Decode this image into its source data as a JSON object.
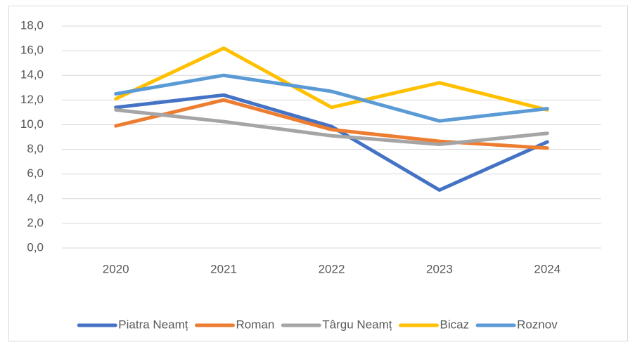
{
  "chart_data": {
    "type": "line",
    "categories": [
      "2020",
      "2021",
      "2022",
      "2023",
      "2024"
    ],
    "series": [
      {
        "name": "Piatra Neamț",
        "color": "#4472c4",
        "values": [
          11.4,
          12.4,
          9.85,
          4.7,
          8.6
        ]
      },
      {
        "name": "Roman",
        "color": "#ed7d31",
        "values": [
          9.9,
          12.0,
          9.6,
          8.65,
          8.1
        ]
      },
      {
        "name": "Târgu Neamț",
        "color": "#a5a5a5",
        "values": [
          11.2,
          10.25,
          9.1,
          8.4,
          9.3
        ]
      },
      {
        "name": "Bicaz",
        "color": "#ffc000",
        "values": [
          12.1,
          16.2,
          11.4,
          13.4,
          11.2
        ]
      },
      {
        "name": "Roznov",
        "color": "#5b9bd5",
        "values": [
          12.5,
          14.0,
          12.7,
          10.3,
          11.3
        ]
      }
    ],
    "ylim": [
      0,
      18
    ],
    "yticks": [
      {
        "value": 0,
        "label": "0,0"
      },
      {
        "value": 2,
        "label": "2,0"
      },
      {
        "value": 4,
        "label": "4,0"
      },
      {
        "value": 6,
        "label": "6,0"
      },
      {
        "value": 8,
        "label": "8,0"
      },
      {
        "value": 10,
        "label": "10,0"
      },
      {
        "value": 12,
        "label": "12,0"
      },
      {
        "value": 14,
        "label": "14,0"
      },
      {
        "value": 16,
        "label": "16,0"
      },
      {
        "value": 18,
        "label": "18,0"
      }
    ],
    "grid": true,
    "legend": "bottom"
  }
}
